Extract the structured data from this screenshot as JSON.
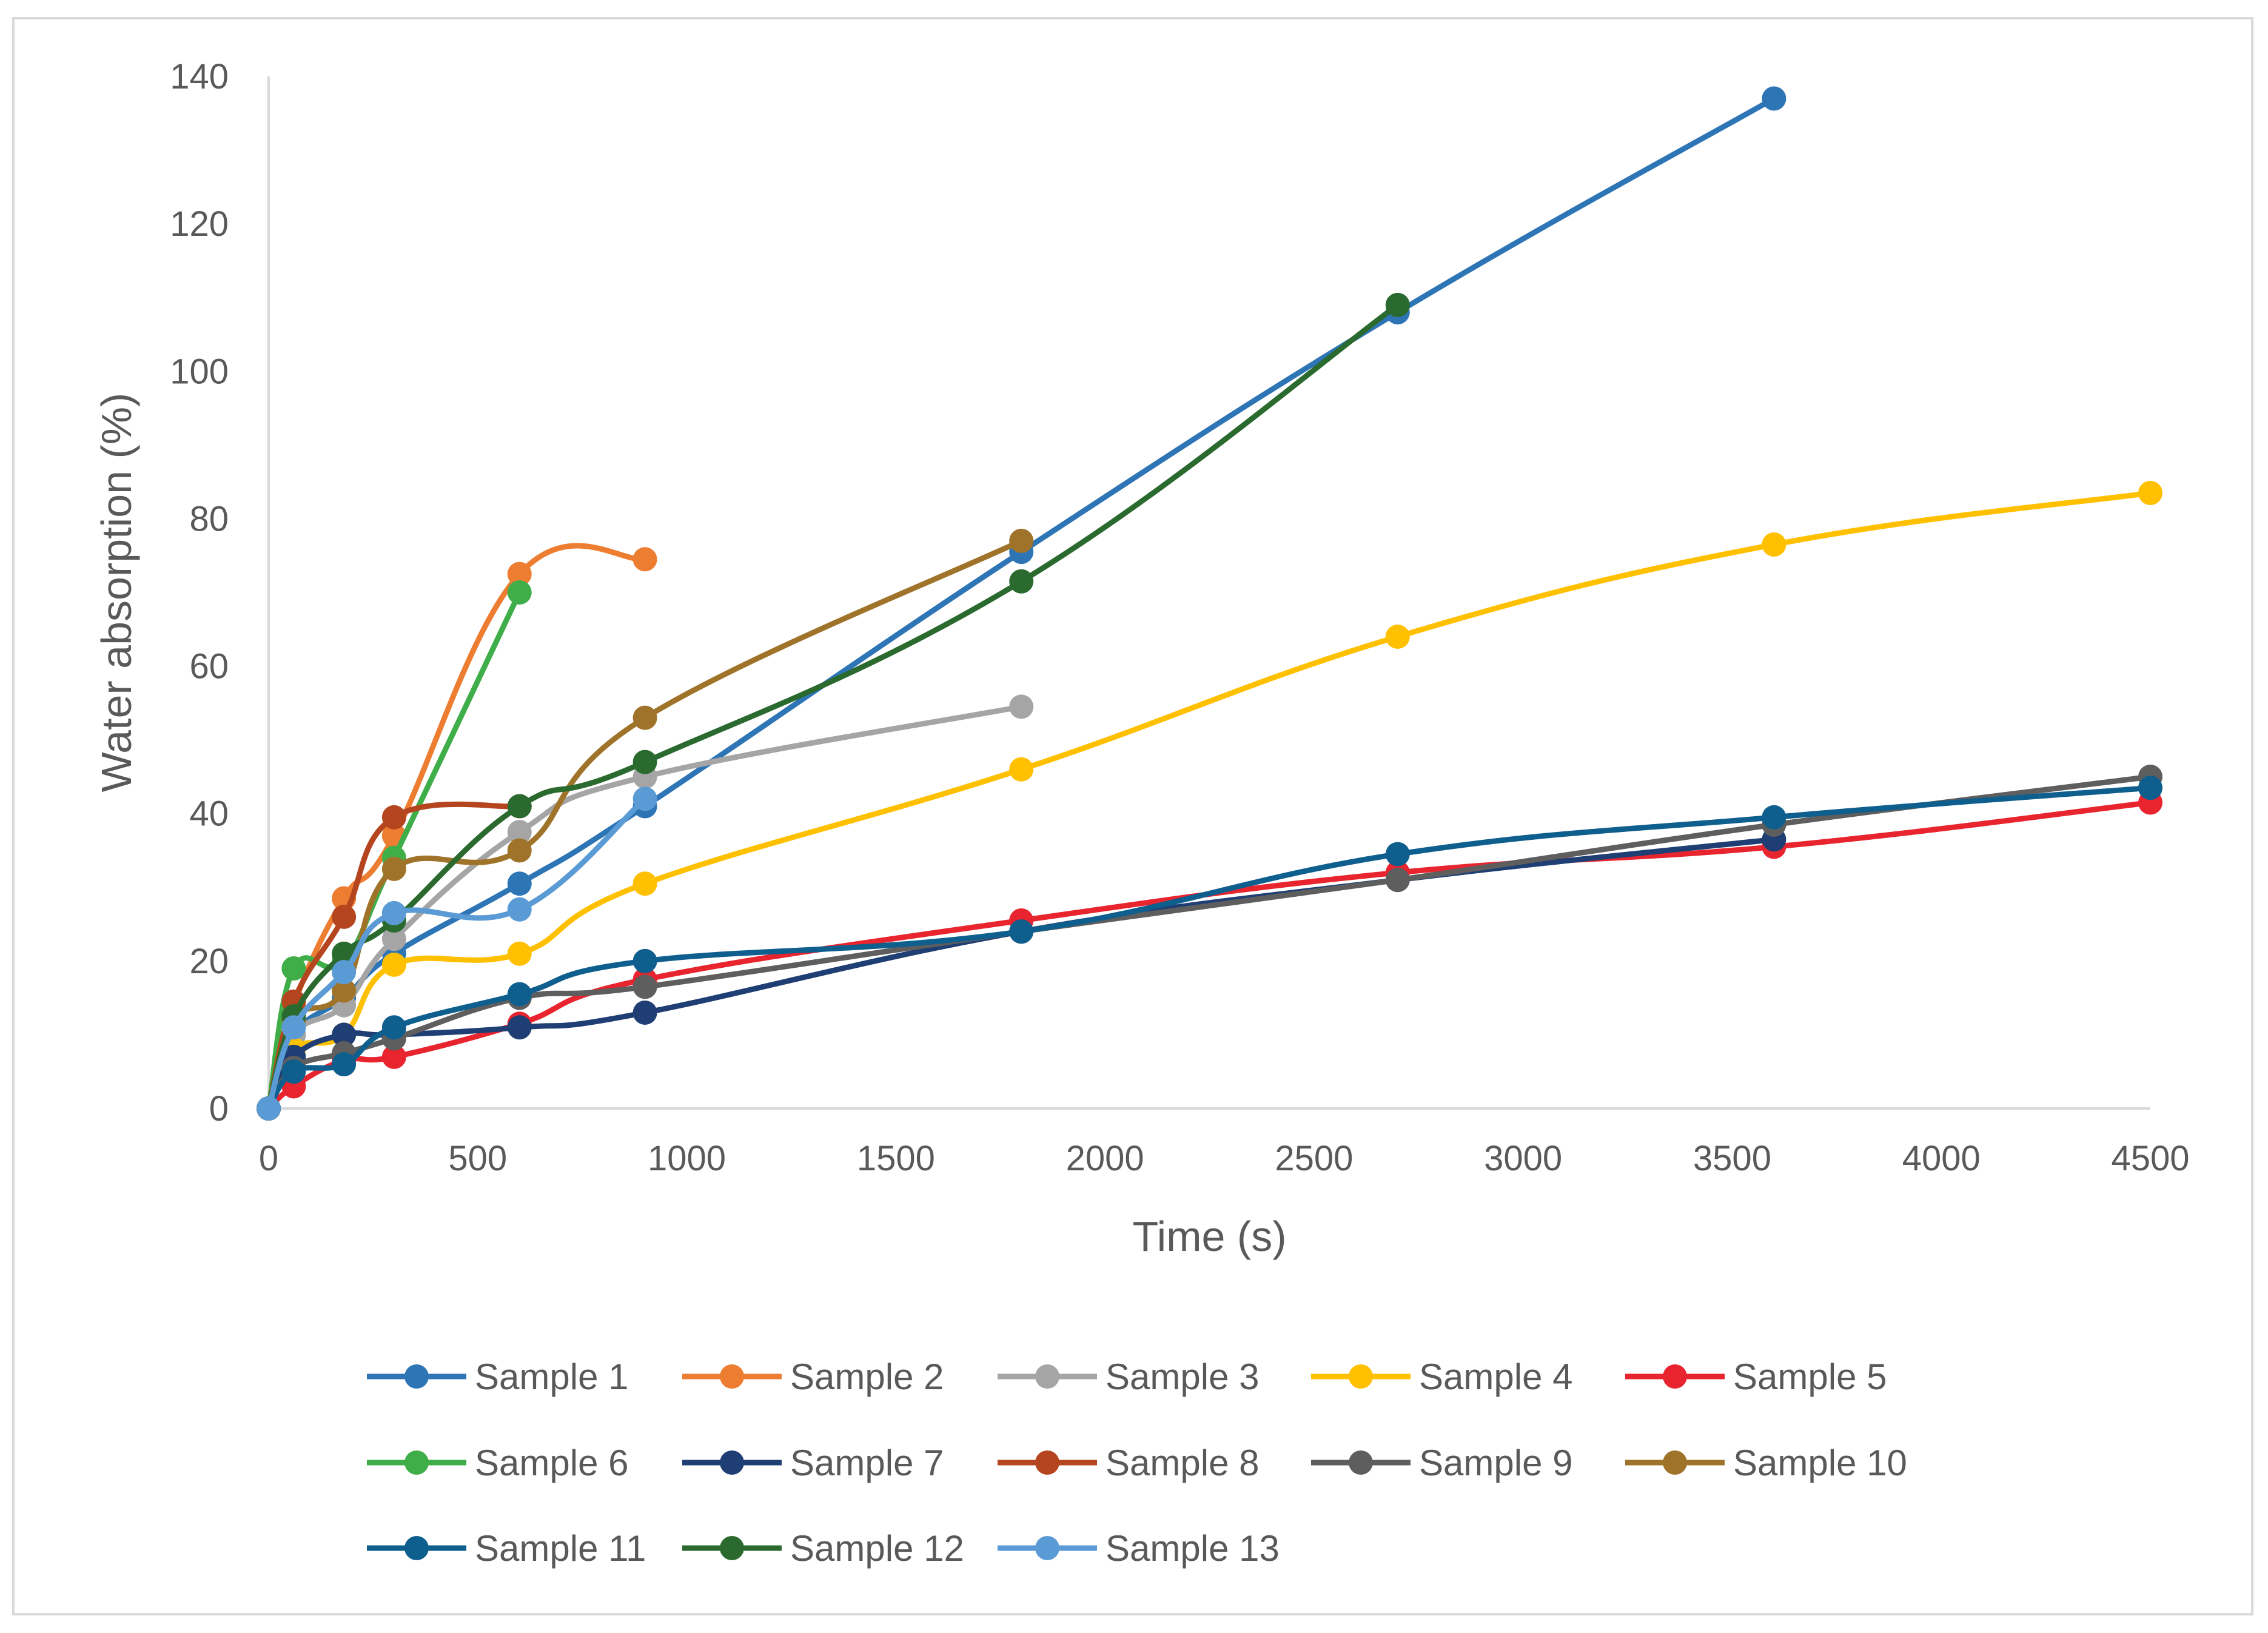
{
  "chart_data": {
    "type": "line",
    "title": "",
    "xlabel": "Time (s)",
    "ylabel": "Water absorption (%)",
    "xlim": [
      0,
      4500
    ],
    "ylim": [
      0,
      140
    ],
    "xticks": [
      0,
      500,
      1000,
      1500,
      2000,
      2500,
      3000,
      3500,
      4000,
      4500
    ],
    "yticks": [
      0,
      20,
      40,
      60,
      80,
      100,
      120,
      140
    ],
    "grid": false,
    "legend_position": "bottom",
    "series": [
      {
        "name": "Sample 1",
        "color": "#2E75B6",
        "x": [
          0,
          60,
          180,
          300,
          600,
          900,
          1800,
          2700,
          3600
        ],
        "y": [
          0,
          10,
          15,
          21,
          30.5,
          41,
          75.5,
          108,
          137
        ]
      },
      {
        "name": "Sample 2",
        "color": "#ED7D31",
        "x": [
          0,
          60,
          180,
          300,
          600,
          900
        ],
        "y": [
          0,
          14,
          28.5,
          37,
          72.5,
          74.5
        ]
      },
      {
        "name": "Sample 3",
        "color": "#A5A5A5",
        "x": [
          0,
          60,
          180,
          300,
          600,
          900,
          1800
        ],
        "y": [
          0,
          10,
          14,
          23,
          37.5,
          45,
          54.5
        ]
      },
      {
        "name": "Sample 4",
        "color": "#FFC000",
        "x": [
          0,
          60,
          180,
          300,
          600,
          900,
          1800,
          2700,
          3600,
          4500
        ],
        "y": [
          0,
          8,
          10,
          19.5,
          21,
          30.5,
          46,
          64,
          76.5,
          83.5
        ]
      },
      {
        "name": "Sample 5",
        "color": "#E8242E",
        "x": [
          0,
          60,
          180,
          300,
          600,
          900,
          1800,
          2700,
          3600,
          4500
        ],
        "y": [
          0,
          3,
          6.5,
          7,
          11.5,
          17.5,
          25.5,
          32,
          35.5,
          41.5
        ]
      },
      {
        "name": "Sample 6",
        "color": "#3FAE48",
        "x": [
          0,
          60,
          180,
          300,
          600
        ],
        "y": [
          0,
          19,
          20,
          34,
          70
        ]
      },
      {
        "name": "Sample 7",
        "color": "#1F3E73",
        "x": [
          0,
          60,
          180,
          300,
          600,
          900,
          1800,
          2700,
          3600
        ],
        "y": [
          0,
          7,
          10,
          10,
          11,
          13,
          24,
          31,
          36.5
        ]
      },
      {
        "name": "Sample 8",
        "color": "#B5451F",
        "x": [
          0,
          60,
          180,
          300,
          600
        ],
        "y": [
          0,
          14.5,
          26,
          39.5,
          41
        ]
      },
      {
        "name": "Sample 9",
        "color": "#5E5E5E",
        "x": [
          0,
          60,
          180,
          300,
          600,
          900,
          1800,
          2700,
          3600,
          4500
        ],
        "y": [
          0,
          5.5,
          7.5,
          9.5,
          15,
          16.5,
          24,
          31,
          38.5,
          45
        ]
      },
      {
        "name": "Sample 10",
        "color": "#A0732A",
        "x": [
          0,
          60,
          180,
          300,
          600,
          900,
          1800
        ],
        "y": [
          0,
          12,
          16,
          32.5,
          35,
          53,
          77
        ]
      },
      {
        "name": "Sample 11",
        "color": "#0E5E8E",
        "x": [
          0,
          60,
          180,
          300,
          600,
          900,
          1800,
          2700,
          3600,
          4500
        ],
        "y": [
          0,
          5,
          6,
          11,
          15.5,
          20,
          24,
          34.5,
          39.5,
          43.5
        ]
      },
      {
        "name": "Sample 12",
        "color": "#2A6A2E",
        "x": [
          0,
          60,
          180,
          300,
          600,
          900,
          1800,
          2700
        ],
        "y": [
          0,
          12.5,
          21,
          25.5,
          41,
          47,
          71.5,
          109
        ]
      },
      {
        "name": "Sample 13",
        "color": "#5B9BD5",
        "x": [
          0,
          60,
          180,
          300,
          600,
          900
        ],
        "y": [
          0,
          11,
          18.5,
          26.5,
          27,
          42
        ]
      }
    ]
  }
}
